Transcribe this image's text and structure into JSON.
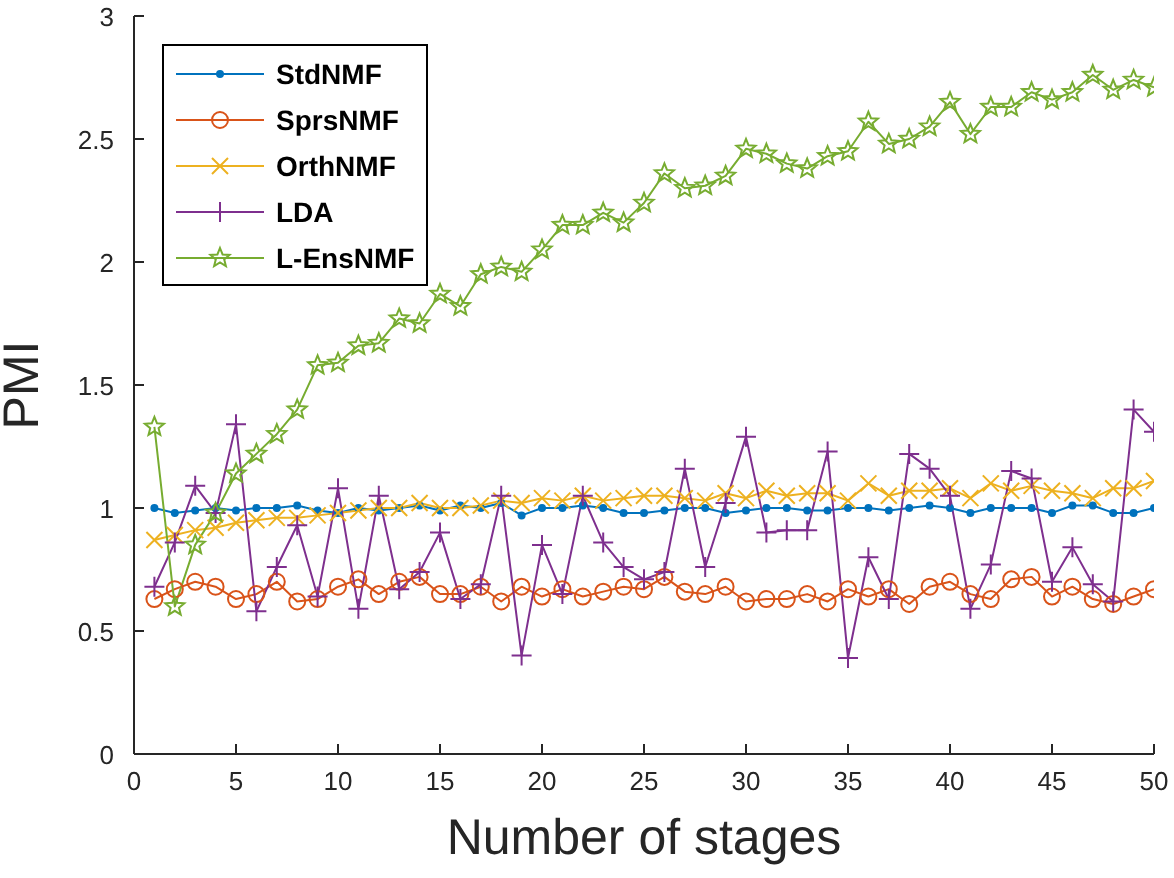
{
  "chart_data": {
    "type": "line",
    "xlabel": "Number of stages",
    "ylabel": "PMI",
    "x": [
      1,
      2,
      3,
      4,
      5,
      6,
      7,
      8,
      9,
      10,
      11,
      12,
      13,
      14,
      15,
      16,
      17,
      18,
      19,
      20,
      21,
      22,
      23,
      24,
      25,
      26,
      27,
      28,
      29,
      30,
      31,
      32,
      33,
      34,
      35,
      36,
      37,
      38,
      39,
      40,
      41,
      42,
      43,
      44,
      45,
      46,
      47,
      48,
      49,
      50
    ],
    "xlim": [
      0,
      50
    ],
    "xticks": [
      0,
      5,
      10,
      15,
      20,
      25,
      30,
      35,
      40,
      45,
      50
    ],
    "ylim": [
      0,
      3
    ],
    "yticks": [
      0,
      0.5,
      1,
      1.5,
      2,
      2.5,
      3
    ],
    "grid": false,
    "legend": "top left",
    "line_style": "solid",
    "series": [
      {
        "name": "StdNMF",
        "color": "#0072bd",
        "marker": "point",
        "values": [
          1.0,
          0.98,
          0.99,
          1.0,
          0.99,
          1.0,
          1.0,
          1.01,
          0.99,
          0.98,
          1.0,
          0.99,
          1.0,
          1.01,
          0.99,
          1.01,
          1.0,
          1.02,
          0.97,
          1.0,
          1.0,
          1.01,
          1.0,
          0.98,
          0.98,
          0.99,
          1.0,
          1.0,
          0.98,
          0.99,
          1.0,
          1.0,
          0.99,
          0.99,
          1.0,
          1.0,
          0.99,
          1.0,
          1.01,
          1.0,
          0.98,
          1.0,
          1.0,
          1.0,
          0.98,
          1.01,
          1.01,
          0.98,
          0.98,
          1.0
        ]
      },
      {
        "name": "SprsNMF",
        "color": "#d95319",
        "marker": "circle",
        "values": [
          0.63,
          0.67,
          0.7,
          0.68,
          0.63,
          0.65,
          0.7,
          0.62,
          0.63,
          0.68,
          0.71,
          0.65,
          0.7,
          0.72,
          0.65,
          0.65,
          0.68,
          0.62,
          0.68,
          0.64,
          0.67,
          0.64,
          0.66,
          0.68,
          0.67,
          0.72,
          0.66,
          0.65,
          0.68,
          0.62,
          0.63,
          0.63,
          0.65,
          0.62,
          0.67,
          0.64,
          0.67,
          0.61,
          0.68,
          0.7,
          0.65,
          0.63,
          0.71,
          0.72,
          0.64,
          0.68,
          0.63,
          0.61,
          0.64,
          0.67
        ]
      },
      {
        "name": "OrthNMF",
        "color": "#edb120",
        "marker": "cross",
        "values": [
          0.87,
          0.89,
          0.91,
          0.92,
          0.94,
          0.95,
          0.96,
          0.96,
          0.97,
          0.98,
          0.99,
          1.0,
          1.0,
          1.02,
          1.0,
          1.0,
          1.01,
          1.03,
          1.02,
          1.04,
          1.03,
          1.05,
          1.03,
          1.04,
          1.05,
          1.05,
          1.04,
          1.03,
          1.06,
          1.04,
          1.07,
          1.05,
          1.06,
          1.06,
          1.03,
          1.1,
          1.05,
          1.07,
          1.07,
          1.08,
          1.04,
          1.1,
          1.07,
          1.09,
          1.07,
          1.06,
          1.04,
          1.08,
          1.08,
          1.11
        ]
      },
      {
        "name": "LDA",
        "color": "#7e2f8e",
        "marker": "plus",
        "values": [
          0.68,
          0.86,
          1.09,
          0.98,
          1.34,
          0.58,
          0.76,
          0.93,
          0.64,
          1.08,
          0.59,
          1.05,
          0.67,
          0.74,
          0.9,
          0.63,
          0.69,
          1.05,
          0.4,
          0.85,
          0.65,
          1.05,
          0.86,
          0.76,
          0.71,
          0.74,
          1.16,
          0.76,
          1.02,
          1.29,
          0.9,
          0.91,
          0.91,
          1.23,
          0.39,
          0.8,
          0.63,
          1.22,
          1.16,
          1.05,
          0.59,
          0.77,
          1.15,
          1.12,
          0.7,
          0.84,
          0.69,
          0.62,
          1.4,
          1.31
        ]
      },
      {
        "name": "L-EnsNMF",
        "color": "#77ac30",
        "marker": "star",
        "values": [
          1.33,
          0.6,
          0.85,
          0.98,
          1.14,
          1.22,
          1.3,
          1.4,
          1.58,
          1.59,
          1.66,
          1.67,
          1.77,
          1.75,
          1.87,
          1.82,
          1.95,
          1.98,
          1.96,
          2.05,
          2.15,
          2.15,
          2.2,
          2.16,
          2.24,
          2.36,
          2.3,
          2.31,
          2.35,
          2.46,
          2.44,
          2.4,
          2.38,
          2.43,
          2.45,
          2.57,
          2.48,
          2.5,
          2.55,
          2.65,
          2.52,
          2.63,
          2.63,
          2.69,
          2.66,
          2.69,
          2.76,
          2.7,
          2.74,
          2.71
        ]
      }
    ]
  }
}
